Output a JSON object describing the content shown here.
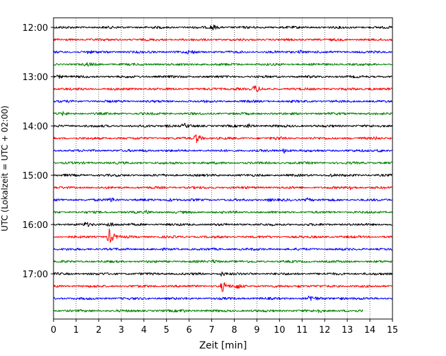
{
  "chart_data": {
    "type": "line",
    "title": "",
    "xlabel": "Zeit  [min]",
    "ylabel": "UTC (Lokalzeit = UTC + 02:00)",
    "xlim": [
      0,
      15
    ],
    "x_ticks": [
      "0",
      "1",
      "2",
      "3",
      "4",
      "5",
      "6",
      "7",
      "8",
      "9",
      "10",
      "11",
      "12",
      "13",
      "14",
      "15"
    ],
    "y_ticks": [
      {
        "label": "12:00",
        "trace": 0
      },
      {
        "label": "13:00",
        "trace": 4
      },
      {
        "label": "14:00",
        "trace": 8
      },
      {
        "label": "15:00",
        "trace": 12
      },
      {
        "label": "16:00",
        "trace": 16
      },
      {
        "label": "17:00",
        "trace": 20
      }
    ],
    "grid": "vertical dotted",
    "trace_interval_minutes": 15,
    "trace_colors": [
      "#000000",
      "#ff0000",
      "#0000ff",
      "#008000"
    ],
    "traces": [
      {
        "start": "12:00",
        "end_min": 15,
        "events": [
          [
            7.0,
            0.85
          ]
        ]
      },
      {
        "start": "12:15",
        "end_min": 15,
        "events": []
      },
      {
        "start": "12:30",
        "end_min": 15,
        "events": [
          [
            6.0,
            0.5
          ],
          [
            10.9,
            0.45
          ],
          [
            1.5,
            0.3
          ]
        ]
      },
      {
        "start": "12:45",
        "end_min": 15,
        "events": [
          [
            1.45,
            0.4
          ]
        ]
      },
      {
        "start": "13:00",
        "end_min": 15,
        "events": [
          [
            0.2,
            0.45
          ]
        ]
      },
      {
        "start": "13:15",
        "end_min": 15,
        "events": [
          [
            8.9,
            1.0
          ],
          [
            8.0,
            0.4
          ],
          [
            14.0,
            0.3
          ]
        ]
      },
      {
        "start": "13:30",
        "end_min": 15,
        "events": []
      },
      {
        "start": "13:45",
        "end_min": 15,
        "events": [
          [
            0.4,
            0.3
          ]
        ]
      },
      {
        "start": "14:00",
        "end_min": 15,
        "events": [
          [
            5.75,
            0.6
          ],
          [
            8.6,
            0.5
          ],
          [
            5.0,
            0.3
          ]
        ]
      },
      {
        "start": "14:15",
        "end_min": 15,
        "events": [
          [
            6.3,
            1.55
          ],
          [
            9.9,
            0.4
          ],
          [
            14.2,
            0.3
          ]
        ]
      },
      {
        "start": "14:30",
        "end_min": 15,
        "events": [
          [
            10.2,
            0.65
          ],
          [
            14.4,
            0.4
          ],
          [
            4.0,
            0.3
          ]
        ]
      },
      {
        "start": "14:45",
        "end_min": 15,
        "events": []
      },
      {
        "start": "15:00",
        "end_min": 15,
        "events": [
          [
            12.2,
            0.35
          ]
        ]
      },
      {
        "start": "15:15",
        "end_min": 15,
        "events": [
          [
            13.1,
            0.65
          ]
        ]
      },
      {
        "start": "15:30",
        "end_min": 15,
        "events": [
          [
            2.5,
            0.75
          ],
          [
            5.1,
            0.45
          ],
          [
            11.2,
            0.55
          ],
          [
            9.5,
            0.3
          ]
        ]
      },
      {
        "start": "15:45",
        "end_min": 15,
        "events": [
          [
            4.1,
            0.35
          ]
        ]
      },
      {
        "start": "16:00",
        "end_min": 15,
        "events": [
          [
            2.45,
            0.8
          ],
          [
            1.4,
            0.5
          ]
        ]
      },
      {
        "start": "16:15",
        "end_min": 15,
        "events": [
          [
            2.45,
            2.3
          ]
        ]
      },
      {
        "start": "16:30",
        "end_min": 15,
        "events": []
      },
      {
        "start": "16:45",
        "end_min": 15,
        "events": [
          [
            7.1,
            0.5
          ]
        ]
      },
      {
        "start": "17:00",
        "end_min": 15,
        "events": [
          [
            7.4,
            0.6
          ]
        ]
      },
      {
        "start": "17:15",
        "end_min": 15,
        "events": [
          [
            7.45,
            1.45
          ],
          [
            8.1,
            0.75
          ],
          [
            10.8,
            0.3
          ]
        ]
      },
      {
        "start": "17:30",
        "end_min": 15,
        "events": [
          [
            11.35,
            0.85
          ],
          [
            12.6,
            0.4
          ]
        ]
      },
      {
        "start": "17:45",
        "end_min": 13.7,
        "events": [
          [
            5.65,
            0.4
          ],
          [
            11.7,
            0.45
          ]
        ]
      }
    ]
  }
}
